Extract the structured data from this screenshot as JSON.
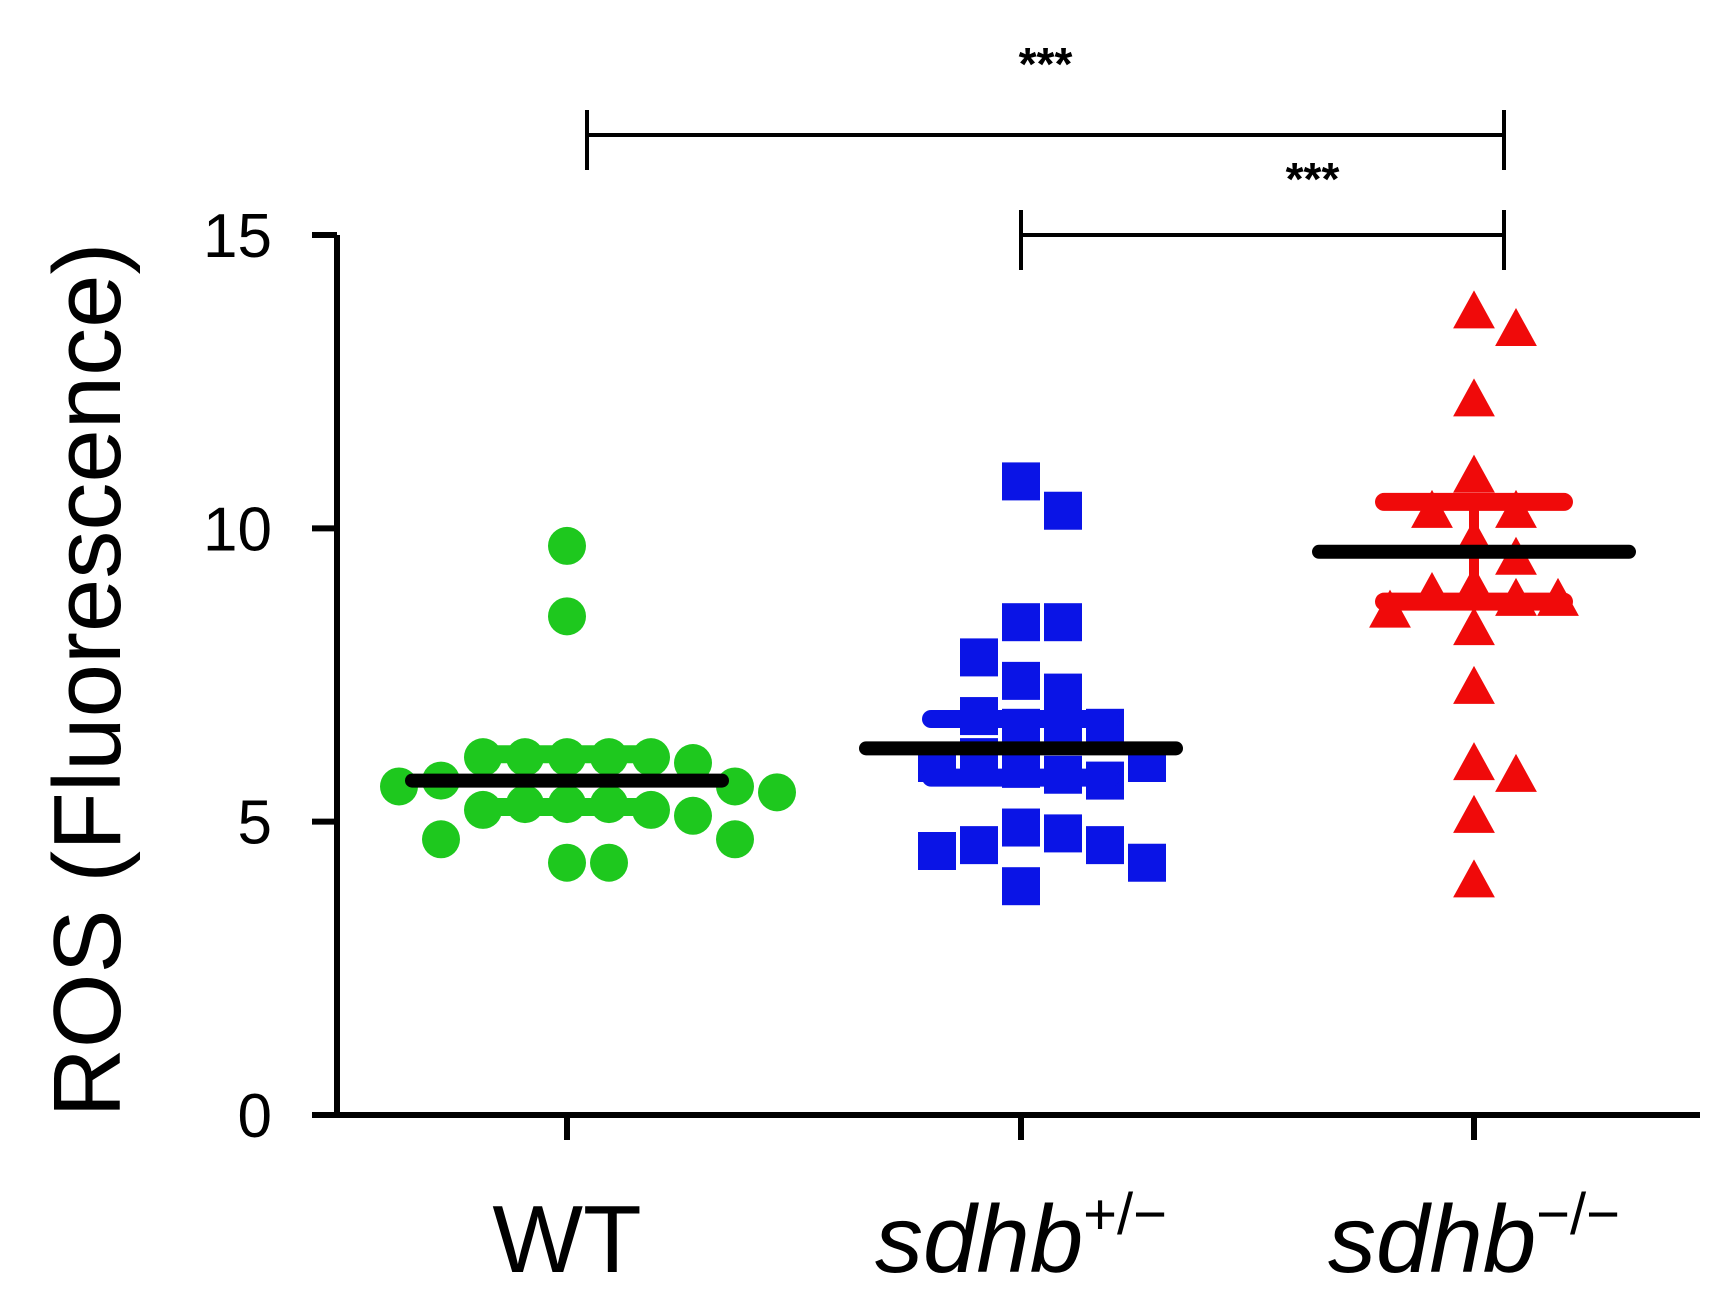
{
  "chart_data": {
    "type": "scatter",
    "title": "",
    "xlabel": "",
    "ylabel": "ROS (Fluorescence)",
    "ylim": [
      0,
      15
    ],
    "yticks": [
      0,
      5,
      10,
      15
    ],
    "categories": [
      {
        "main": "WT",
        "sup": ""
      },
      {
        "main": "sdhb",
        "sup": "+/−"
      },
      {
        "main": "sdhb",
        "sup": "−/−"
      }
    ],
    "series": [
      {
        "name": "WT",
        "marker": "circle",
        "color": "#1ec81e",
        "mean": 5.7,
        "sem": 0.45,
        "values": [
          9.7,
          8.5,
          6.1,
          6.1,
          6.1,
          6.1,
          6.1,
          6.0,
          5.6,
          5.6,
          5.7,
          5.5,
          5.3,
          5.3,
          5.3,
          5.2,
          5.2,
          5.1,
          4.7,
          4.7,
          4.3,
          4.3
        ]
      },
      {
        "name": "sdhb+/−",
        "marker": "square",
        "color": "#0a14e6",
        "mean": 6.25,
        "sem": 0.5,
        "values": [
          10.8,
          10.3,
          8.4,
          8.4,
          7.8,
          7.4,
          7.2,
          6.8,
          6.6,
          6.6,
          6.5,
          6.1,
          6.0,
          6.0,
          5.9,
          5.8,
          5.7,
          4.9,
          4.8,
          4.6,
          4.6,
          4.5,
          4.3,
          3.9
        ]
      },
      {
        "name": "sdhb−/−",
        "marker": "triangle",
        "color": "#f00a0a",
        "mean": 9.6,
        "sem": 0.85,
        "values": [
          13.7,
          13.4,
          12.2,
          10.9,
          10.3,
          10.3,
          9.8,
          9.5,
          9.0,
          8.9,
          8.8,
          8.8,
          8.6,
          8.3,
          7.3,
          6.0,
          5.8,
          5.1,
          4.0
        ]
      }
    ],
    "significance": [
      {
        "from": 0,
        "to": 2,
        "label": "***"
      },
      {
        "from": 1,
        "to": 2,
        "label": "***"
      }
    ]
  }
}
